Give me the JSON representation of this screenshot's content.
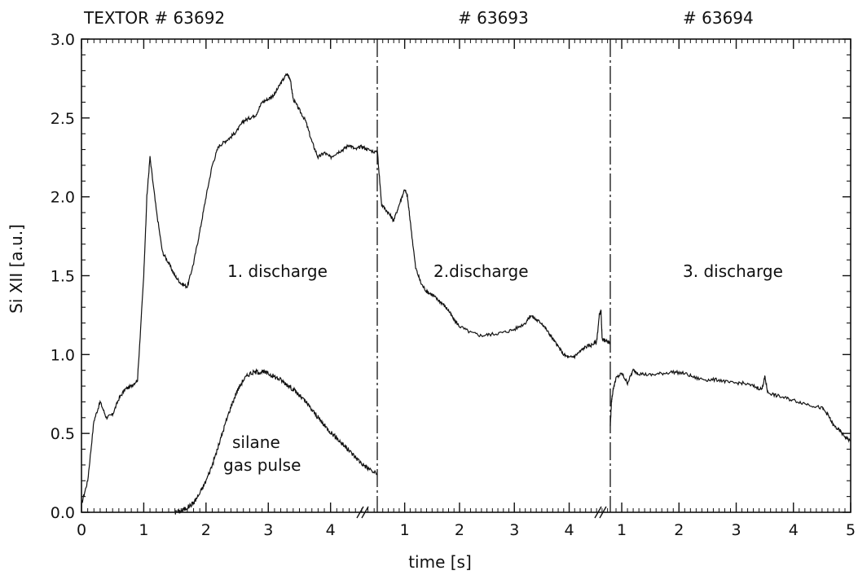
{
  "chart_data": {
    "type": "line",
    "headers": [
      "TEXTOR # 63692",
      "# 63693",
      "# 63694"
    ],
    "xlabel": "time [s]",
    "ylabel": "Si XII [a.u.]",
    "ylim": [
      0,
      3.0
    ],
    "yticks": [
      "0.0",
      "0.5",
      "1.0",
      "1.5",
      "2.0",
      "2.5",
      "3.0"
    ],
    "annotations": [
      "1. discharge",
      "2.discharge",
      "3. discharge"
    ],
    "gas_label": [
      "silane",
      "gas pulse"
    ],
    "panels": [
      {
        "name": "1. discharge",
        "xlim": [
          0,
          4.75
        ],
        "xticks": [
          "0",
          "1",
          "2",
          "3",
          "4"
        ],
        "x": [
          0,
          0.1,
          0.2,
          0.3,
          0.4,
          0.5,
          0.6,
          0.7,
          0.8,
          0.9,
          1.0,
          1.05,
          1.1,
          1.2,
          1.3,
          1.4,
          1.5,
          1.6,
          1.7,
          1.8,
          1.9,
          2.0,
          2.1,
          2.2,
          2.3,
          2.4,
          2.5,
          2.6,
          2.7,
          2.8,
          2.9,
          3.0,
          3.1,
          3.2,
          3.3,
          3.35,
          3.4,
          3.5,
          3.6,
          3.7,
          3.8,
          3.9,
          4.0,
          4.1,
          4.2,
          4.3,
          4.4,
          4.5,
          4.6,
          4.75
        ],
        "y": [
          0.05,
          0.2,
          0.58,
          0.7,
          0.6,
          0.62,
          0.72,
          0.78,
          0.8,
          0.84,
          1.5,
          2.0,
          2.25,
          1.92,
          1.65,
          1.58,
          1.5,
          1.45,
          1.43,
          1.58,
          1.78,
          2.0,
          2.2,
          2.32,
          2.35,
          2.38,
          2.42,
          2.48,
          2.5,
          2.52,
          2.6,
          2.62,
          2.65,
          2.72,
          2.78,
          2.75,
          2.62,
          2.55,
          2.48,
          2.35,
          2.25,
          2.28,
          2.25,
          2.28,
          2.3,
          2.33,
          2.3,
          2.32,
          2.3,
          2.28
        ]
      },
      {
        "name": "2.discharge",
        "xlim": [
          0.5,
          4.75
        ],
        "xticks": [
          "1",
          "2",
          "3",
          "4"
        ],
        "x": [
          0.5,
          0.58,
          0.7,
          0.8,
          0.9,
          1.0,
          1.05,
          1.1,
          1.2,
          1.3,
          1.4,
          1.5,
          1.6,
          1.7,
          1.8,
          1.9,
          2.0,
          2.2,
          2.4,
          2.6,
          2.8,
          3.0,
          3.2,
          3.3,
          3.4,
          3.5,
          3.6,
          3.7,
          3.8,
          3.9,
          4.0,
          4.1,
          4.2,
          4.3,
          4.4,
          4.5,
          4.55,
          4.58,
          4.6,
          4.65,
          4.75
        ],
        "y": [
          2.3,
          1.95,
          1.9,
          1.85,
          1.95,
          2.05,
          2.0,
          1.85,
          1.55,
          1.45,
          1.4,
          1.38,
          1.35,
          1.32,
          1.28,
          1.22,
          1.18,
          1.14,
          1.12,
          1.13,
          1.14,
          1.16,
          1.2,
          1.25,
          1.22,
          1.2,
          1.15,
          1.1,
          1.05,
          1.0,
          0.98,
          0.99,
          1.02,
          1.05,
          1.06,
          1.08,
          1.25,
          1.28,
          1.1,
          1.09,
          1.07
        ]
      },
      {
        "name": "3. discharge",
        "xlim": [
          0.8,
          5.0
        ],
        "xticks": [
          "1",
          "2",
          "3",
          "4",
          "5"
        ],
        "x": [
          0.8,
          0.82,
          0.85,
          0.9,
          1.0,
          1.1,
          1.2,
          1.3,
          1.5,
          1.7,
          1.9,
          2.1,
          2.3,
          2.5,
          2.7,
          2.9,
          3.1,
          3.3,
          3.45,
          3.5,
          3.55,
          3.7,
          3.9,
          4.1,
          4.3,
          4.5,
          4.6,
          4.7,
          4.8,
          4.9,
          5.0
        ],
        "y": [
          0.55,
          0.7,
          0.78,
          0.85,
          0.88,
          0.82,
          0.9,
          0.88,
          0.87,
          0.88,
          0.89,
          0.88,
          0.85,
          0.84,
          0.84,
          0.82,
          0.82,
          0.8,
          0.78,
          0.86,
          0.76,
          0.74,
          0.72,
          0.7,
          0.68,
          0.66,
          0.62,
          0.55,
          0.52,
          0.48,
          0.45
        ]
      }
    ],
    "gas_pulse": {
      "x": [
        1.5,
        1.6,
        1.7,
        1.8,
        1.9,
        2.0,
        2.1,
        2.2,
        2.3,
        2.4,
        2.5,
        2.6,
        2.7,
        2.8,
        2.9,
        3.0,
        3.1,
        3.2,
        3.3,
        3.4,
        3.5,
        3.6,
        3.7,
        3.8,
        3.9,
        4.0,
        4.1,
        4.2,
        4.3,
        4.4,
        4.5,
        4.6,
        4.75
      ],
      "y": [
        0.0,
        0.01,
        0.03,
        0.06,
        0.12,
        0.2,
        0.3,
        0.42,
        0.55,
        0.67,
        0.77,
        0.84,
        0.88,
        0.89,
        0.89,
        0.88,
        0.86,
        0.84,
        0.81,
        0.78,
        0.74,
        0.7,
        0.65,
        0.6,
        0.55,
        0.51,
        0.47,
        0.43,
        0.39,
        0.35,
        0.31,
        0.28,
        0.24
      ]
    }
  }
}
